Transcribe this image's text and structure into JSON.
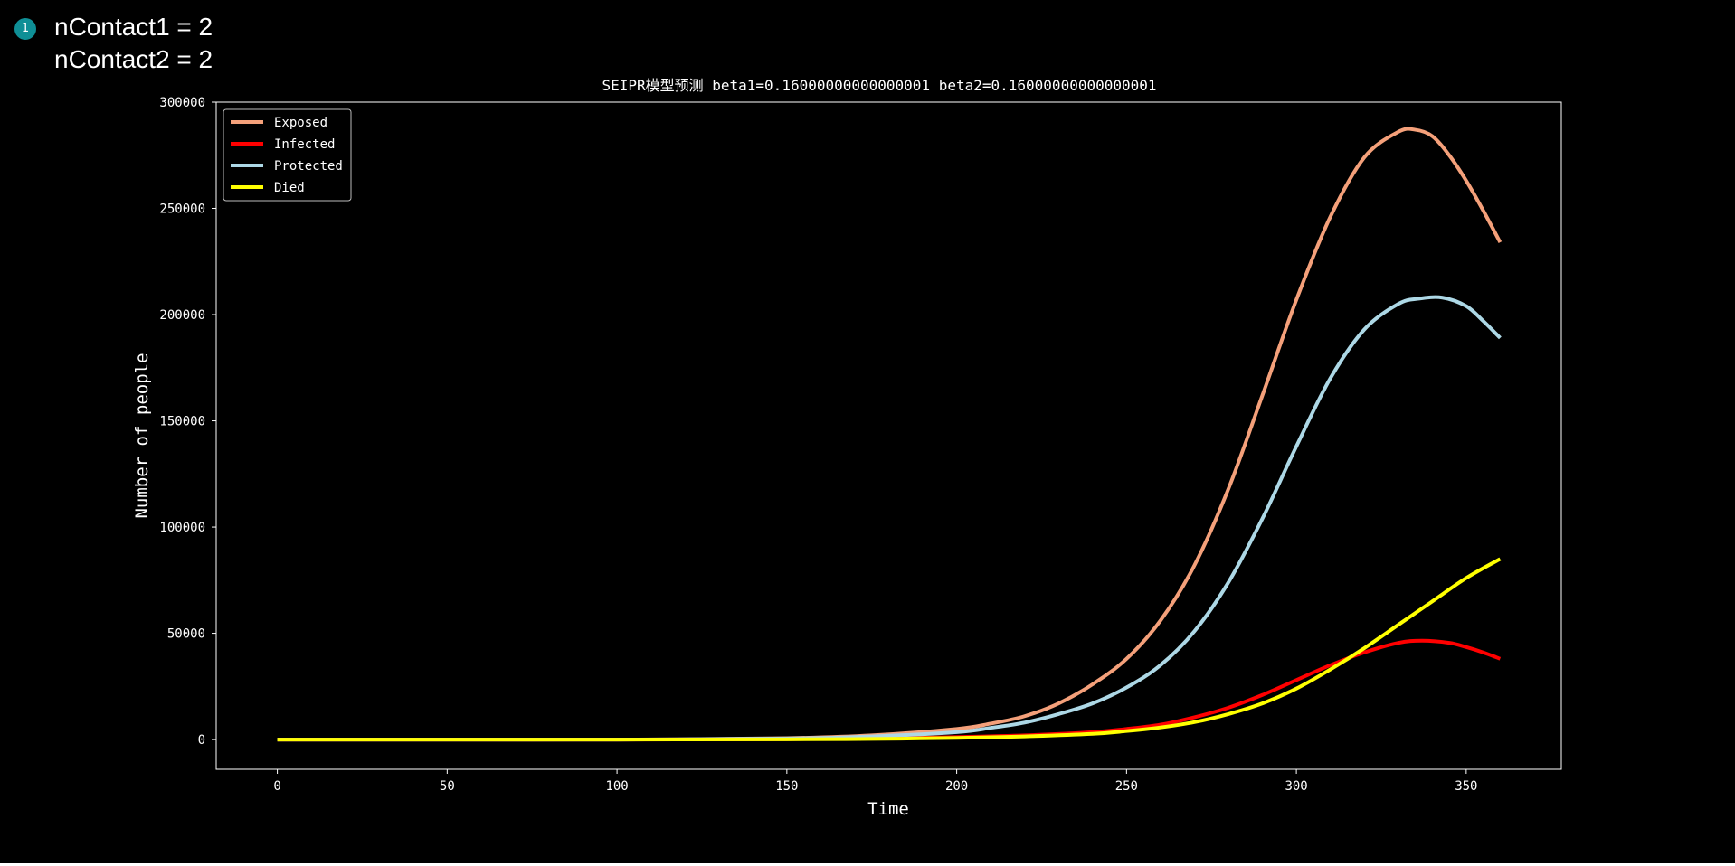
{
  "annotation": {
    "badge": "1",
    "lines": [
      "nContact1 = 2",
      "nContact2 = 2"
    ]
  },
  "chart_data": {
    "type": "line",
    "title": "SEIPR模型预测 beta1=0.16000000000000001 beta2=0.16000000000000001",
    "xlabel": "Time",
    "ylabel": "Number of people",
    "xlim": [
      -18,
      378
    ],
    "ylim": [
      -14000,
      300000
    ],
    "xticks": [
      0,
      50,
      100,
      150,
      200,
      250,
      300,
      350
    ],
    "yticks": [
      0,
      50000,
      100000,
      150000,
      200000,
      250000,
      300000
    ],
    "grid": false,
    "legend_position": "top-left",
    "background": "#000000",
    "axis_color": "#ffffff",
    "series": [
      {
        "name": "Exposed",
        "color": "#f4a07a",
        "x": [
          0,
          50,
          100,
          150,
          175,
          200,
          210,
          220,
          230,
          240,
          250,
          260,
          270,
          280,
          290,
          300,
          310,
          320,
          330,
          335,
          340,
          345,
          350,
          355,
          360
        ],
        "y": [
          0,
          0,
          0,
          700,
          2000,
          5000,
          7500,
          11000,
          17000,
          26000,
          38000,
          56000,
          82000,
          118000,
          162000,
          207000,
          246000,
          274000,
          286000,
          287000,
          284000,
          275000,
          263000,
          249000,
          234000
        ]
      },
      {
        "name": "Infected",
        "color": "#ff0000",
        "x": [
          0,
          50,
          100,
          150,
          175,
          200,
          220,
          240,
          250,
          260,
          270,
          280,
          290,
          300,
          310,
          320,
          330,
          337,
          345,
          350,
          355,
          360
        ],
        "y": [
          0,
          0,
          0,
          200,
          500,
          1200,
          2000,
          3500,
          5000,
          7000,
          10500,
          15000,
          21000,
          28000,
          35000,
          41000,
          45500,
          46500,
          45500,
          43500,
          41000,
          38000
        ]
      },
      {
        "name": "Protected",
        "color": "#add8e6",
        "x": [
          0,
          50,
          100,
          150,
          175,
          200,
          210,
          220,
          230,
          240,
          250,
          260,
          270,
          280,
          290,
          300,
          310,
          320,
          330,
          336,
          343,
          350,
          355,
          360
        ],
        "y": [
          0,
          0,
          0,
          500,
          1500,
          3500,
          5500,
          8000,
          12000,
          17000,
          24500,
          35000,
          51000,
          74000,
          104000,
          138000,
          170000,
          193000,
          205000,
          207500,
          208000,
          204000,
          197000,
          189000
        ]
      },
      {
        "name": "Died",
        "color": "#ffff00",
        "x": [
          0,
          50,
          100,
          150,
          175,
          200,
          220,
          240,
          250,
          260,
          270,
          280,
          290,
          300,
          310,
          320,
          330,
          340,
          350,
          360
        ],
        "y": [
          0,
          0,
          0,
          100,
          300,
          800,
          1500,
          2700,
          4000,
          5700,
          8200,
          12000,
          17000,
          24000,
          33000,
          43000,
          54000,
          65000,
          76000,
          85000
        ]
      }
    ]
  }
}
